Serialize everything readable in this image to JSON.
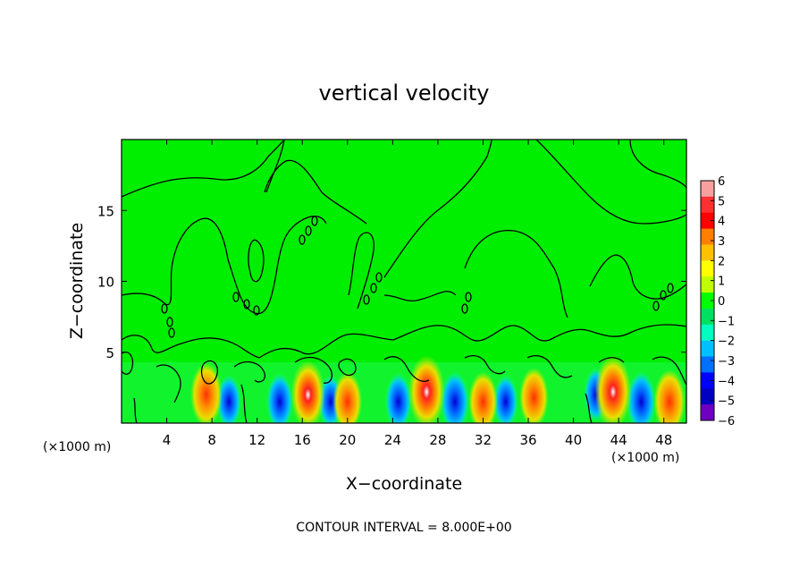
{
  "chart_data": {
    "type": "heatmap",
    "title": "vertical velocity",
    "xlabel": "X−coordinate",
    "ylabel": "Z−coordinate",
    "x_unit_left": "(×1000 m)",
    "x_unit_right": "(×1000 m)",
    "xlim": [
      0,
      50
    ],
    "ylim": [
      0,
      20
    ],
    "x_ticks": [
      4,
      8,
      12,
      16,
      20,
      24,
      28,
      32,
      36,
      40,
      44,
      48
    ],
    "y_ticks": [
      5,
      10,
      15
    ],
    "colorbar": {
      "ticks": [
        "6",
        "5",
        "4",
        "3",
        "2",
        "1",
        "0",
        "−1",
        "−2",
        "−3",
        "−4",
        "−5",
        "−6"
      ],
      "colors": [
        "#f7a0a0",
        "#ff3030",
        "#ff0000",
        "#ff7f00",
        "#ffc000",
        "#ffff00",
        "#c0ff00",
        "#00ff00",
        "#00e060",
        "#00ffc0",
        "#00c0ff",
        "#0070ff",
        "#0000ff",
        "#0000c0",
        "#7000c0"
      ]
    },
    "updraft_cores": [
      {
        "x": 7.5,
        "z": 2,
        "w": 4
      },
      {
        "x": 16.5,
        "z": 2,
        "w": 5
      },
      {
        "x": 20,
        "z": 1.5,
        "w": 3
      },
      {
        "x": 27,
        "z": 2.2,
        "w": 6
      },
      {
        "x": 32,
        "z": 1.5,
        "w": 3
      },
      {
        "x": 36.5,
        "z": 1.8,
        "w": 3
      },
      {
        "x": 43.5,
        "z": 2.2,
        "w": 6
      },
      {
        "x": 48.5,
        "z": 1.5,
        "w": 4
      }
    ],
    "downdraft_cores": [
      {
        "x": 9.5,
        "z": 1.5,
        "w": -3
      },
      {
        "x": 14,
        "z": 1.5,
        "w": -4
      },
      {
        "x": 18.5,
        "z": 1.5,
        "w": -3
      },
      {
        "x": 24.5,
        "z": 1.5,
        "w": -4
      },
      {
        "x": 29.5,
        "z": 1.5,
        "w": -5
      },
      {
        "x": 34,
        "z": 1.5,
        "w": -3
      },
      {
        "x": 42,
        "z": 2,
        "w": -3
      },
      {
        "x": 46,
        "z": 1.5,
        "w": -5
      }
    ],
    "footer": "CONTOUR INTERVAL = 8.000E+00"
  }
}
